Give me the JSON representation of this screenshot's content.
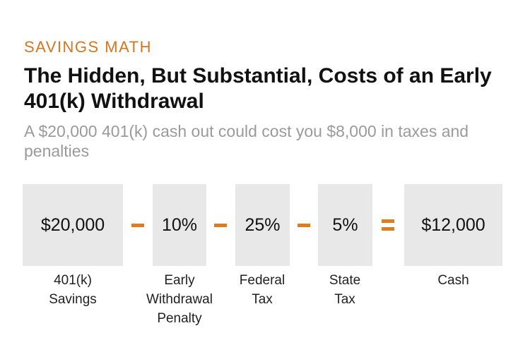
{
  "header": {
    "kicker": "SAVINGS MATH",
    "title": "The Hidden, But Substantial, Costs of an Early 401(k) Withdrawal",
    "subtitle": "A $20,000 401(k) cash out could cost you $8,000 in taxes and penalties"
  },
  "equation": {
    "items": [
      {
        "value": "$20,000",
        "label": [
          "401(k)",
          "Savings"
        ]
      },
      {
        "value": "10%",
        "label": [
          "Early",
          "Withdrawal",
          "Penalty"
        ]
      },
      {
        "value": "25%",
        "label": [
          "Federal",
          "Tax"
        ]
      },
      {
        "value": "5%",
        "label": [
          "State",
          "Tax"
        ]
      },
      {
        "value": "$12,000",
        "label": [
          "Cash"
        ]
      }
    ],
    "operators": [
      "minus",
      "minus",
      "minus",
      "equals"
    ]
  },
  "colors": {
    "accent": "#e07b1f",
    "box_fill": "#e8e8e8",
    "subtitle": "#9a9a9a"
  }
}
